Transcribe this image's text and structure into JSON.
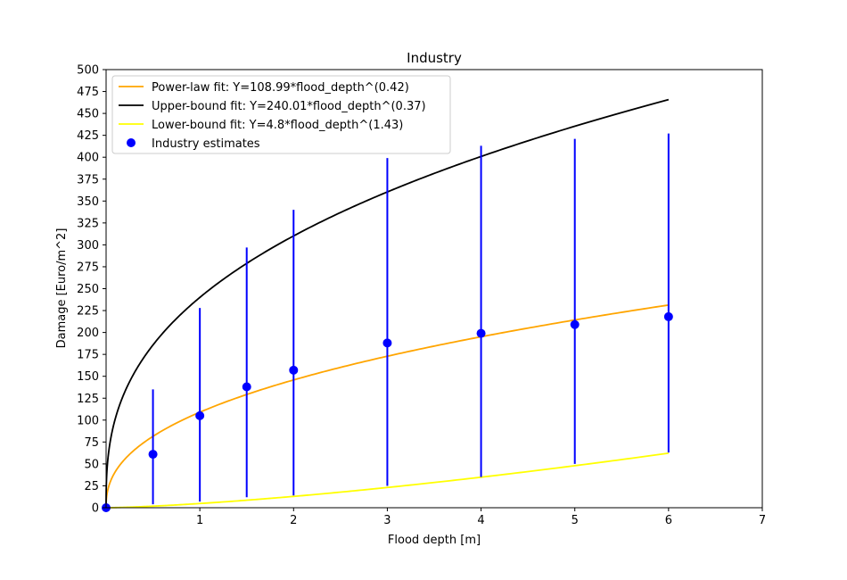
{
  "chart_data": {
    "type": "scatter",
    "title": "Industry",
    "xlabel": "Flood depth [m]",
    "ylabel": "Damage [Euro/m^2]",
    "xlim": [
      0,
      7
    ],
    "ylim": [
      0,
      500
    ],
    "xticks": [
      "1",
      "2",
      "3",
      "4",
      "5",
      "6",
      "7"
    ],
    "yticks": [
      "0",
      "25",
      "50",
      "75",
      "100",
      "125",
      "150",
      "175",
      "200",
      "225",
      "250",
      "275",
      "300",
      "325",
      "350",
      "375",
      "400",
      "425",
      "450",
      "475",
      "500"
    ],
    "grid": false,
    "legend_position": "top-left",
    "fits": [
      {
        "name": "Power-law fit: Y=108.99*flood_depth^(0.42)",
        "coef": 108.99,
        "exp": 0.42,
        "color": "#ffa500",
        "x_max": 6
      },
      {
        "name": "Upper-bound fit: Y=240.01*flood_depth^(0.37)",
        "coef": 240.01,
        "exp": 0.37,
        "color": "#000000",
        "x_max": 6
      },
      {
        "name": "Lower-bound fit: Y=4.8*flood_depth^(1.43)",
        "coef": 4.8,
        "exp": 1.43,
        "color": "#ffff00",
        "x_max": 6
      }
    ],
    "series": [
      {
        "name": "Industry estimates",
        "color": "#0000ff",
        "x": [
          0,
          0.5,
          1,
          1.5,
          2,
          3,
          4,
          5,
          6
        ],
        "y": [
          0,
          61,
          105,
          138,
          157,
          188,
          199,
          209,
          218
        ],
        "y_low": [
          0,
          4,
          7,
          12,
          14,
          25,
          35,
          50,
          63
        ],
        "y_high": [
          0,
          135,
          228,
          297,
          340,
          399,
          413,
          421,
          427
        ]
      }
    ]
  }
}
